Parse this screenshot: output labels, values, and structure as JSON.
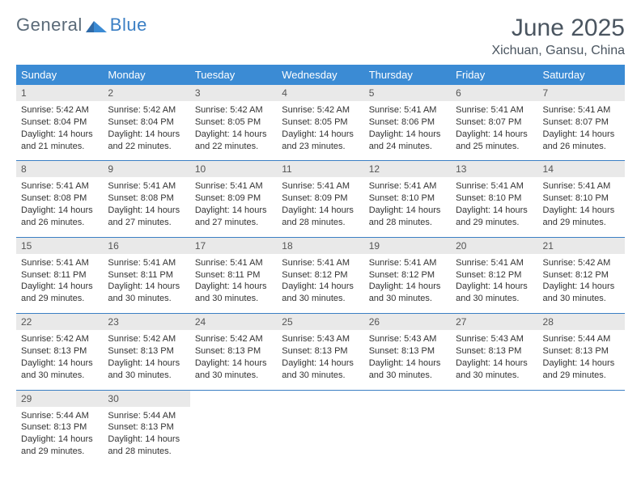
{
  "logo": {
    "word1": "General",
    "word2": "Blue"
  },
  "title": "June 2025",
  "location": "Xichuan, Gansu, China",
  "colors": {
    "header_bg": "#3b8bd4",
    "header_text": "#ffffff",
    "daynum_bg": "#e9e9e9",
    "rule": "#3b7fc4",
    "title_color": "#4a5560"
  },
  "weekdays": [
    "Sunday",
    "Monday",
    "Tuesday",
    "Wednesday",
    "Thursday",
    "Friday",
    "Saturday"
  ],
  "weeks": [
    [
      {
        "n": "1",
        "sr": "5:42 AM",
        "ss": "8:04 PM",
        "d1": "14 hours",
        "d2": "21 minutes."
      },
      {
        "n": "2",
        "sr": "5:42 AM",
        "ss": "8:04 PM",
        "d1": "14 hours",
        "d2": "22 minutes."
      },
      {
        "n": "3",
        "sr": "5:42 AM",
        "ss": "8:05 PM",
        "d1": "14 hours",
        "d2": "22 minutes."
      },
      {
        "n": "4",
        "sr": "5:42 AM",
        "ss": "8:05 PM",
        "d1": "14 hours",
        "d2": "23 minutes."
      },
      {
        "n": "5",
        "sr": "5:41 AM",
        "ss": "8:06 PM",
        "d1": "14 hours",
        "d2": "24 minutes."
      },
      {
        "n": "6",
        "sr": "5:41 AM",
        "ss": "8:07 PM",
        "d1": "14 hours",
        "d2": "25 minutes."
      },
      {
        "n": "7",
        "sr": "5:41 AM",
        "ss": "8:07 PM",
        "d1": "14 hours",
        "d2": "26 minutes."
      }
    ],
    [
      {
        "n": "8",
        "sr": "5:41 AM",
        "ss": "8:08 PM",
        "d1": "14 hours",
        "d2": "26 minutes."
      },
      {
        "n": "9",
        "sr": "5:41 AM",
        "ss": "8:08 PM",
        "d1": "14 hours",
        "d2": "27 minutes."
      },
      {
        "n": "10",
        "sr": "5:41 AM",
        "ss": "8:09 PM",
        "d1": "14 hours",
        "d2": "27 minutes."
      },
      {
        "n": "11",
        "sr": "5:41 AM",
        "ss": "8:09 PM",
        "d1": "14 hours",
        "d2": "28 minutes."
      },
      {
        "n": "12",
        "sr": "5:41 AM",
        "ss": "8:10 PM",
        "d1": "14 hours",
        "d2": "28 minutes."
      },
      {
        "n": "13",
        "sr": "5:41 AM",
        "ss": "8:10 PM",
        "d1": "14 hours",
        "d2": "29 minutes."
      },
      {
        "n": "14",
        "sr": "5:41 AM",
        "ss": "8:10 PM",
        "d1": "14 hours",
        "d2": "29 minutes."
      }
    ],
    [
      {
        "n": "15",
        "sr": "5:41 AM",
        "ss": "8:11 PM",
        "d1": "14 hours",
        "d2": "29 minutes."
      },
      {
        "n": "16",
        "sr": "5:41 AM",
        "ss": "8:11 PM",
        "d1": "14 hours",
        "d2": "30 minutes."
      },
      {
        "n": "17",
        "sr": "5:41 AM",
        "ss": "8:11 PM",
        "d1": "14 hours",
        "d2": "30 minutes."
      },
      {
        "n": "18",
        "sr": "5:41 AM",
        "ss": "8:12 PM",
        "d1": "14 hours",
        "d2": "30 minutes."
      },
      {
        "n": "19",
        "sr": "5:41 AM",
        "ss": "8:12 PM",
        "d1": "14 hours",
        "d2": "30 minutes."
      },
      {
        "n": "20",
        "sr": "5:41 AM",
        "ss": "8:12 PM",
        "d1": "14 hours",
        "d2": "30 minutes."
      },
      {
        "n": "21",
        "sr": "5:42 AM",
        "ss": "8:12 PM",
        "d1": "14 hours",
        "d2": "30 minutes."
      }
    ],
    [
      {
        "n": "22",
        "sr": "5:42 AM",
        "ss": "8:13 PM",
        "d1": "14 hours",
        "d2": "30 minutes."
      },
      {
        "n": "23",
        "sr": "5:42 AM",
        "ss": "8:13 PM",
        "d1": "14 hours",
        "d2": "30 minutes."
      },
      {
        "n": "24",
        "sr": "5:42 AM",
        "ss": "8:13 PM",
        "d1": "14 hours",
        "d2": "30 minutes."
      },
      {
        "n": "25",
        "sr": "5:43 AM",
        "ss": "8:13 PM",
        "d1": "14 hours",
        "d2": "30 minutes."
      },
      {
        "n": "26",
        "sr": "5:43 AM",
        "ss": "8:13 PM",
        "d1": "14 hours",
        "d2": "30 minutes."
      },
      {
        "n": "27",
        "sr": "5:43 AM",
        "ss": "8:13 PM",
        "d1": "14 hours",
        "d2": "30 minutes."
      },
      {
        "n": "28",
        "sr": "5:44 AM",
        "ss": "8:13 PM",
        "d1": "14 hours",
        "d2": "29 minutes."
      }
    ],
    [
      {
        "n": "29",
        "sr": "5:44 AM",
        "ss": "8:13 PM",
        "d1": "14 hours",
        "d2": "29 minutes."
      },
      {
        "n": "30",
        "sr": "5:44 AM",
        "ss": "8:13 PM",
        "d1": "14 hours",
        "d2": "28 minutes."
      },
      null,
      null,
      null,
      null,
      null
    ]
  ],
  "labels": {
    "sunrise": "Sunrise: ",
    "sunset": "Sunset: ",
    "daylight": "Daylight: ",
    "and": "and "
  }
}
